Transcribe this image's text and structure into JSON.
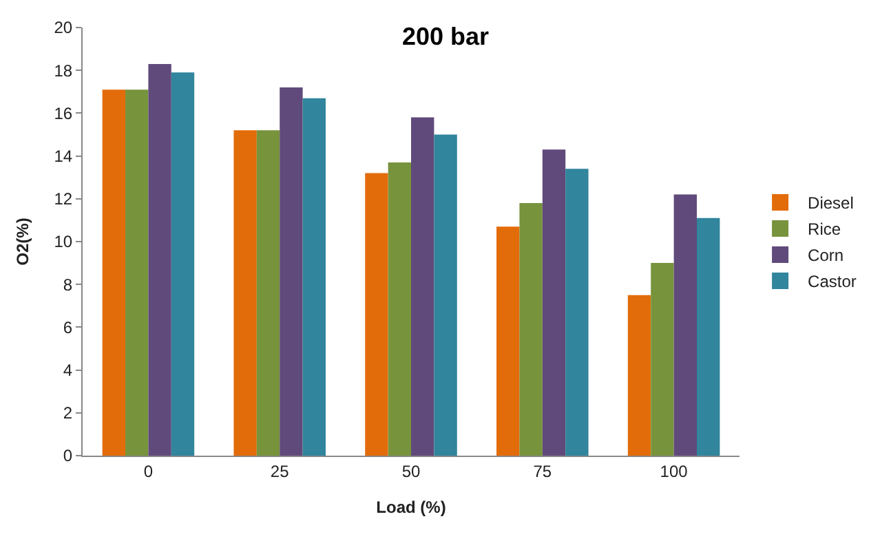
{
  "chart_data": {
    "type": "bar",
    "title": "200 bar",
    "xlabel": "Load (%)",
    "ylabel": "O2(%)",
    "categories": [
      "0",
      "25",
      "50",
      "75",
      "100"
    ],
    "series": [
      {
        "name": "Diesel",
        "color": "#e36c0a",
        "values": [
          17.1,
          15.2,
          13.2,
          10.7,
          7.5
        ]
      },
      {
        "name": "Rice",
        "color": "#77933c",
        "values": [
          17.1,
          15.2,
          13.7,
          11.8,
          9.0
        ]
      },
      {
        "name": "Corn",
        "color": "#604a7b",
        "values": [
          18.3,
          17.2,
          15.8,
          14.3,
          12.2
        ]
      },
      {
        "name": "Castor",
        "color": "#31859c",
        "values": [
          17.9,
          16.7,
          15.0,
          13.4,
          11.1
        ]
      }
    ],
    "ylim": [
      0,
      20
    ],
    "yticks": [
      0,
      2,
      4,
      6,
      8,
      10,
      12,
      14,
      16,
      18,
      20
    ],
    "grid": false,
    "legend": "right"
  }
}
